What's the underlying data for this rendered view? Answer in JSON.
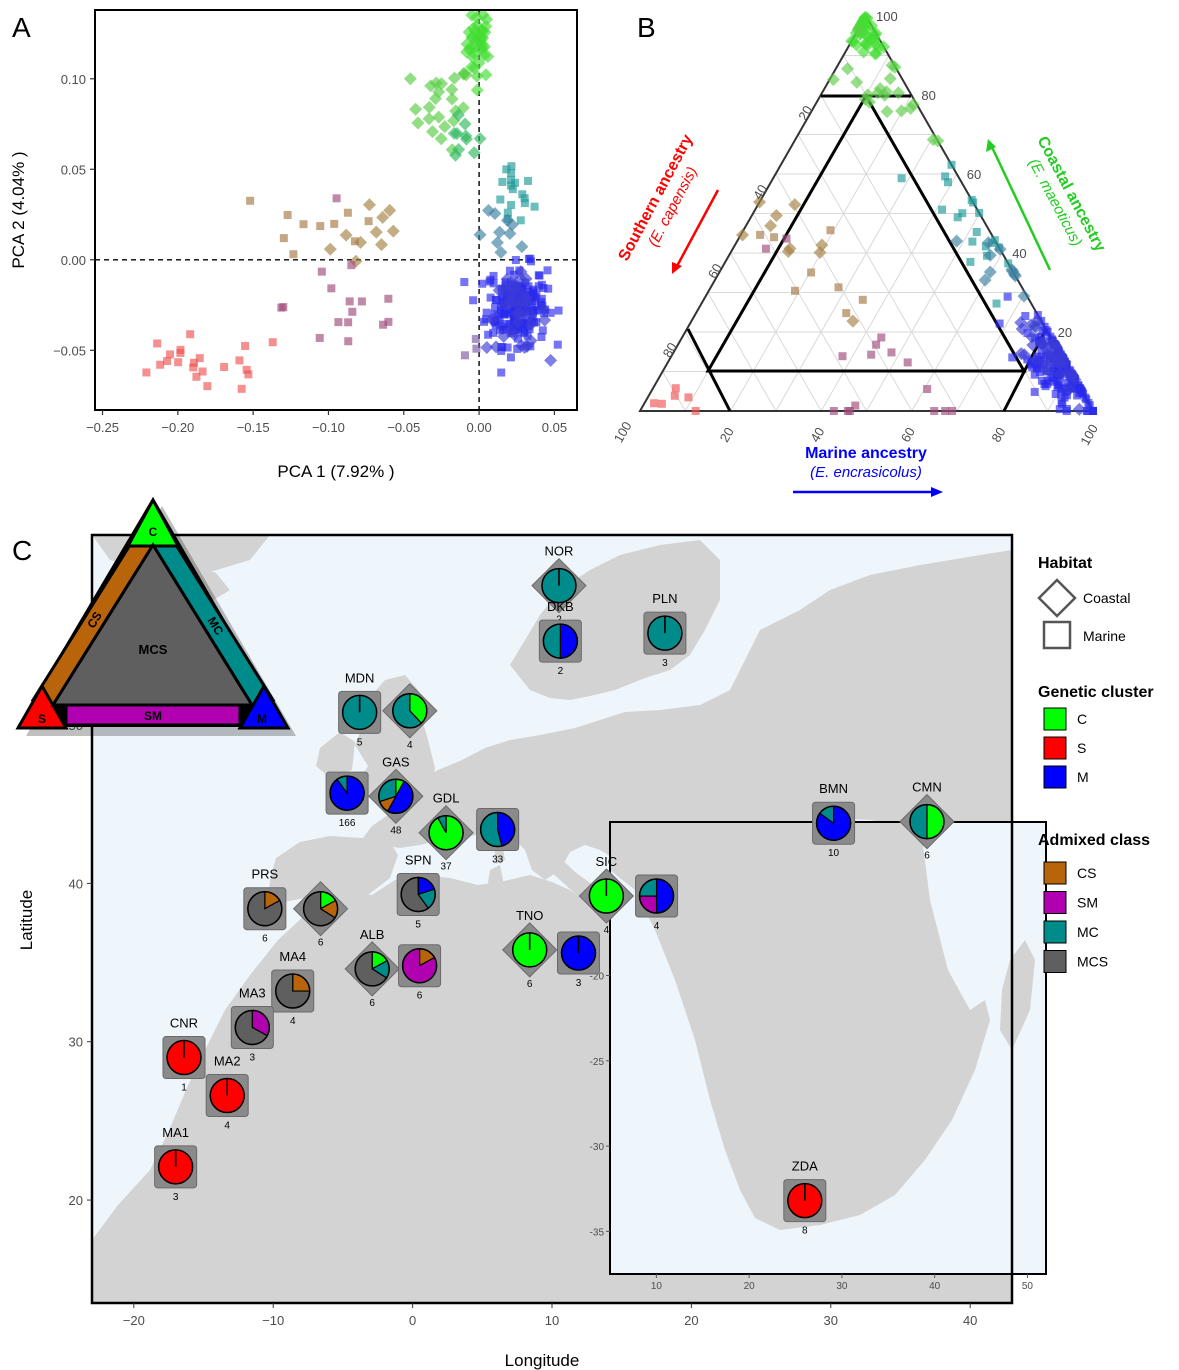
{
  "colors": {
    "C": "#00ff00",
    "S": "#ff0000",
    "M": "#0000ff",
    "CS": "#b8640a",
    "SM": "#b000b0",
    "MC": "#008b8b",
    "MCS": "#5f5f5f",
    "land": "#d3d3d3",
    "sea": "#eef6fc"
  },
  "panel_letters": {
    "a": "A",
    "b": "B",
    "c": "C"
  },
  "chart_data": [
    {
      "type": "scatter",
      "panel": "A",
      "xlabel": "PCA 1 (7.92% )",
      "ylabel": "PCA 2 (4.04% )",
      "xlim": [
        -0.255,
        0.065
      ],
      "ylim": [
        -0.083,
        0.138
      ],
      "xticks": [
        -0.25,
        -0.2,
        -0.15,
        -0.1,
        -0.05,
        0.0,
        0.05
      ],
      "xtick_labels": [
        "−0.25",
        "−0.20",
        "−0.15",
        "−0.10",
        "−0.05",
        "0.00",
        "0.05"
      ],
      "yticks": [
        -0.05,
        0.0,
        0.05,
        0.1
      ],
      "ytick_labels": [
        "−0.05",
        "0.00",
        "0.05",
        "0.10"
      ],
      "reference_lines": {
        "x": 0,
        "y": 0,
        "style": "dashed"
      },
      "clusters": [
        {
          "shape": "diamond",
          "color": "#44dd33",
          "cx": 0.0,
          "cy": 0.12,
          "sx": 0.004,
          "sy": 0.01,
          "n": 40
        },
        {
          "shape": "diamond",
          "color": "#58cc44",
          "cx": -0.025,
          "cy": 0.085,
          "sx": 0.01,
          "sy": 0.012,
          "n": 24
        },
        {
          "shape": "diamond",
          "color": "#2eb860",
          "cx": -0.01,
          "cy": 0.065,
          "sx": 0.006,
          "sy": 0.006,
          "n": 10
        },
        {
          "shape": "square",
          "color": "#1e9a9a",
          "cx": 0.022,
          "cy": 0.035,
          "sx": 0.007,
          "sy": 0.01,
          "n": 18
        },
        {
          "shape": "diamond",
          "color": "#3c7fa0",
          "cx": 0.018,
          "cy": 0.012,
          "sx": 0.01,
          "sy": 0.007,
          "n": 10
        },
        {
          "shape": "square",
          "color": "#2a2aee",
          "cx": 0.025,
          "cy": -0.025,
          "sx": 0.01,
          "sy": 0.011,
          "n": 190
        },
        {
          "shape": "diamond",
          "color": "#3b3bd8",
          "cx": 0.025,
          "cy": -0.03,
          "sx": 0.01,
          "sy": 0.01,
          "n": 40
        },
        {
          "shape": "square",
          "color": "#7d59a6",
          "cx": -0.005,
          "cy": -0.048,
          "sx": 0.003,
          "sy": 0.004,
          "n": 3
        },
        {
          "shape": "diamond",
          "color": "#a58044",
          "cx": -0.075,
          "cy": 0.015,
          "sx": 0.015,
          "sy": 0.015,
          "n": 10
        },
        {
          "shape": "square",
          "color": "#a57a44",
          "cx": -0.11,
          "cy": 0.02,
          "sx": 0.03,
          "sy": 0.015,
          "n": 10
        },
        {
          "shape": "square",
          "color": "#9e4a7a",
          "cx": -0.085,
          "cy": -0.025,
          "sx": 0.022,
          "sy": 0.018,
          "n": 16
        },
        {
          "shape": "square",
          "color": "#ee5555",
          "cx": -0.185,
          "cy": -0.058,
          "sx": 0.03,
          "sy": 0.008,
          "n": 22
        }
      ]
    },
    {
      "type": "ternary",
      "panel": "B",
      "axis_ticks": [
        "20",
        "40",
        "60",
        "80",
        "100"
      ],
      "left_label": "Southern ancestry",
      "left_sublabel": "(E. capensis)",
      "right_label": "Coastal ancestry",
      "right_sublabel": "(E. maeoticus)",
      "bottom_label": "Marine ancestry",
      "bottom_sublabel": "(E. encrasicolus)",
      "clusters": [
        {
          "shape": "diamond",
          "color": "#44dd33",
          "c": 0.95,
          "s": 0.02,
          "sd": 0.03,
          "n": 40
        },
        {
          "shape": "diamond",
          "color": "#60cc4a",
          "c": 0.82,
          "s": 0.05,
          "sd": 0.06,
          "n": 20
        },
        {
          "shape": "square",
          "color": "#1e9a9a",
          "c": 0.5,
          "s": 0.02,
          "sd": 0.08,
          "n": 20
        },
        {
          "shape": "diamond",
          "color": "#3c7fa0",
          "c": 0.35,
          "s": 0.03,
          "sd": 0.06,
          "n": 12
        },
        {
          "shape": "square",
          "color": "#2a2aee",
          "c": 0.1,
          "s": 0.01,
          "sd": 0.06,
          "n": 160
        },
        {
          "shape": "diamond",
          "color": "#3b3bd8",
          "c": 0.15,
          "s": 0.02,
          "sd": 0.05,
          "n": 40
        },
        {
          "shape": "diamond",
          "color": "#a58044",
          "c": 0.4,
          "s": 0.45,
          "sd": 0.08,
          "n": 10
        },
        {
          "shape": "square",
          "color": "#a57a44",
          "c": 0.35,
          "s": 0.45,
          "sd": 0.1,
          "n": 8
        },
        {
          "shape": "square",
          "color": "#9e4a7a",
          "c": 0.15,
          "s": 0.45,
          "sd": 0.12,
          "n": 16
        },
        {
          "shape": "square",
          "color": "#ee5555",
          "c": 0.02,
          "s": 0.93,
          "sd": 0.04,
          "n": 6
        }
      ]
    },
    {
      "type": "map",
      "panel": "C",
      "xlabel": "Longitude",
      "ylabel": "Latitude",
      "xlim": [
        -23,
        43
      ],
      "ylim": [
        13.5,
        62
      ],
      "xticks": [
        -20,
        -10,
        0,
        10,
        20,
        30,
        40
      ],
      "xtick_labels": [
        "−20",
        "−10",
        "0",
        "10",
        "20",
        "30",
        "40"
      ],
      "yticks": [
        20,
        30,
        40,
        50
      ],
      "ytick_labels": [
        "20",
        "30",
        "40",
        "50"
      ],
      "inset": {
        "xlim": [
          5,
          52
        ],
        "ylim": [
          -37.5,
          -11
        ],
        "xticks": [
          10,
          20,
          30,
          40,
          50
        ],
        "xtick_labels": [
          "10",
          "20",
          "30",
          "40",
          "50"
        ],
        "yticks": [
          -15,
          -20,
          -25,
          -30,
          -35
        ],
        "ytick_labels": [
          "-15",
          "-20",
          "-25",
          "-30",
          "-35"
        ]
      },
      "sites": [
        {
          "code": "NOR",
          "n": "2",
          "habitat": "coastal",
          "lon": 10.5,
          "lat": 58.8,
          "pie": {
            "MC": 1.0
          }
        },
        {
          "code": "DKB",
          "n": "2",
          "habitat": "marine",
          "lon": 10.6,
          "lat": 55.3,
          "pie": {
            "MC": 0.5,
            "M": 0.5
          }
        },
        {
          "code": "PLN",
          "n": "3",
          "habitat": "marine",
          "lon": 18.1,
          "lat": 55.8,
          "pie": {
            "MC": 1.0
          }
        },
        {
          "code": "MDN",
          "n": "5",
          "habitat": "marine",
          "lon": -3.8,
          "lat": 50.8,
          "pie": {
            "MC": 1.0
          }
        },
        {
          "code": "",
          "n": "4",
          "habitat": "coastal",
          "lon": -0.2,
          "lat": 50.9,
          "pie": {
            "C": 0.38,
            "MC": 0.62
          }
        },
        {
          "code": "",
          "n": "166",
          "habitat": "marine",
          "lon": -4.7,
          "lat": 45.7,
          "pie": {
            "MC": 0.1,
            "M": 0.9
          }
        },
        {
          "code": "GAS",
          "n": "48",
          "habitat": "coastal",
          "lon": -1.2,
          "lat": 45.5,
          "pie": {
            "C": 0.08,
            "CS": 0.12,
            "M": 0.5,
            "MC": 0.3
          }
        },
        {
          "code": "GDL",
          "n": "37",
          "habitat": "coastal",
          "lon": 2.4,
          "lat": 43.2,
          "pie": {
            "C": 0.92,
            "MC": 0.08
          }
        },
        {
          "code": "",
          "n": "33",
          "habitat": "marine",
          "lon": 6.1,
          "lat": 43.4,
          "pie": {
            "M": 0.46,
            "MC": 0.54
          }
        },
        {
          "code": "PRS",
          "n": "6",
          "habitat": "marine",
          "lon": -10.6,
          "lat": 38.4,
          "pie": {
            "CS": 0.17,
            "MCS": 0.83
          }
        },
        {
          "code": "",
          "n": "6",
          "habitat": "coastal",
          "lon": -6.6,
          "lat": 38.4,
          "pie": {
            "C": 0.17,
            "CS": 0.17,
            "MCS": 0.66
          }
        },
        {
          "code": "SPN",
          "n": "5",
          "habitat": "marine",
          "lon": 0.4,
          "lat": 39.3,
          "pie": {
            "M": 0.2,
            "MC": 0.2,
            "MCS": 0.6
          }
        },
        {
          "code": "ALB",
          "n": "6",
          "habitat": "coastal",
          "lon": -2.9,
          "lat": 34.6,
          "pie": {
            "C": 0.17,
            "MC": 0.17,
            "MCS": 0.66
          }
        },
        {
          "code": "",
          "n": "6",
          "habitat": "marine",
          "lon": 0.5,
          "lat": 34.8,
          "pie": {
            "CS": 0.17,
            "SM": 0.83
          }
        },
        {
          "code": "MA4",
          "n": "4",
          "habitat": "marine",
          "lon": -8.6,
          "lat": 33.2,
          "pie": {
            "CS": 0.25,
            "MCS": 0.75
          }
        },
        {
          "code": "MA3",
          "n": "3",
          "habitat": "marine",
          "lon": -11.5,
          "lat": 30.9,
          "pie": {
            "SM": 0.33,
            "MCS": 0.67
          }
        },
        {
          "code": "CNR",
          "n": "1",
          "habitat": "marine",
          "lon": -16.4,
          "lat": 29.0,
          "pie": {
            "S": 1.0
          }
        },
        {
          "code": "MA2",
          "n": "4",
          "habitat": "marine",
          "lon": -13.3,
          "lat": 26.6,
          "pie": {
            "S": 1.0
          }
        },
        {
          "code": "MA1",
          "n": "3",
          "habitat": "marine",
          "lon": -17.0,
          "lat": 22.1,
          "pie": {
            "S": 1.0
          }
        },
        {
          "code": "SIC",
          "n": "4",
          "habitat": "coastal",
          "lon": 13.9,
          "lat": 39.2,
          "pie": {
            "C": 1.0
          }
        },
        {
          "code": "",
          "n": "4",
          "habitat": "marine",
          "lon": 17.5,
          "lat": 39.2,
          "pie": {
            "SM": 0.25,
            "MC": 0.25,
            "M": 0.5
          }
        },
        {
          "code": "TNO",
          "n": "6",
          "habitat": "coastal",
          "lon": 8.4,
          "lat": 35.8,
          "pie": {
            "C": 1.0
          }
        },
        {
          "code": "",
          "n": "3",
          "habitat": "marine",
          "lon": 11.9,
          "lat": 35.6,
          "pie": {
            "M": 1.0
          }
        },
        {
          "code": "BMN",
          "n": "10",
          "habitat": "marine",
          "lon": 30.2,
          "lat": 43.8,
          "pie": {
            "MC": 0.15,
            "M": 0.85
          }
        },
        {
          "code": "CMN",
          "n": "6",
          "habitat": "coastal",
          "lon": 36.9,
          "lat": 43.9,
          "pie": {
            "C": 0.5,
            "MC": 0.5
          }
        },
        {
          "code": "ZDA",
          "n": "8",
          "habitat": "marine",
          "inset": true,
          "lon": 26.0,
          "lat": -33.2,
          "pie": {
            "S": 1.0
          }
        }
      ]
    }
  ],
  "triangle_key": {
    "C": "C",
    "S": "S",
    "M": "M",
    "CS": "CS",
    "MC": "MC",
    "SM": "SM",
    "MCS": "MCS"
  },
  "legend": {
    "habitat_title": "Habitat",
    "habitat_items": [
      {
        "label": "Coastal",
        "shape": "diamond"
      },
      {
        "label": "Marine",
        "shape": "square"
      }
    ],
    "cluster_title": "Genetic cluster",
    "cluster_items": [
      {
        "label": "C",
        "color": "#00ff00"
      },
      {
        "label": "S",
        "color": "#ff0000"
      },
      {
        "label": "M",
        "color": "#0000ff"
      }
    ],
    "admix_title": "Admixed class",
    "admix_items": [
      {
        "label": "CS",
        "color": "#b8640a"
      },
      {
        "label": "SM",
        "color": "#b000b0"
      },
      {
        "label": "MC",
        "color": "#008b8b"
      },
      {
        "label": "MCS",
        "color": "#5f5f5f"
      }
    ]
  }
}
